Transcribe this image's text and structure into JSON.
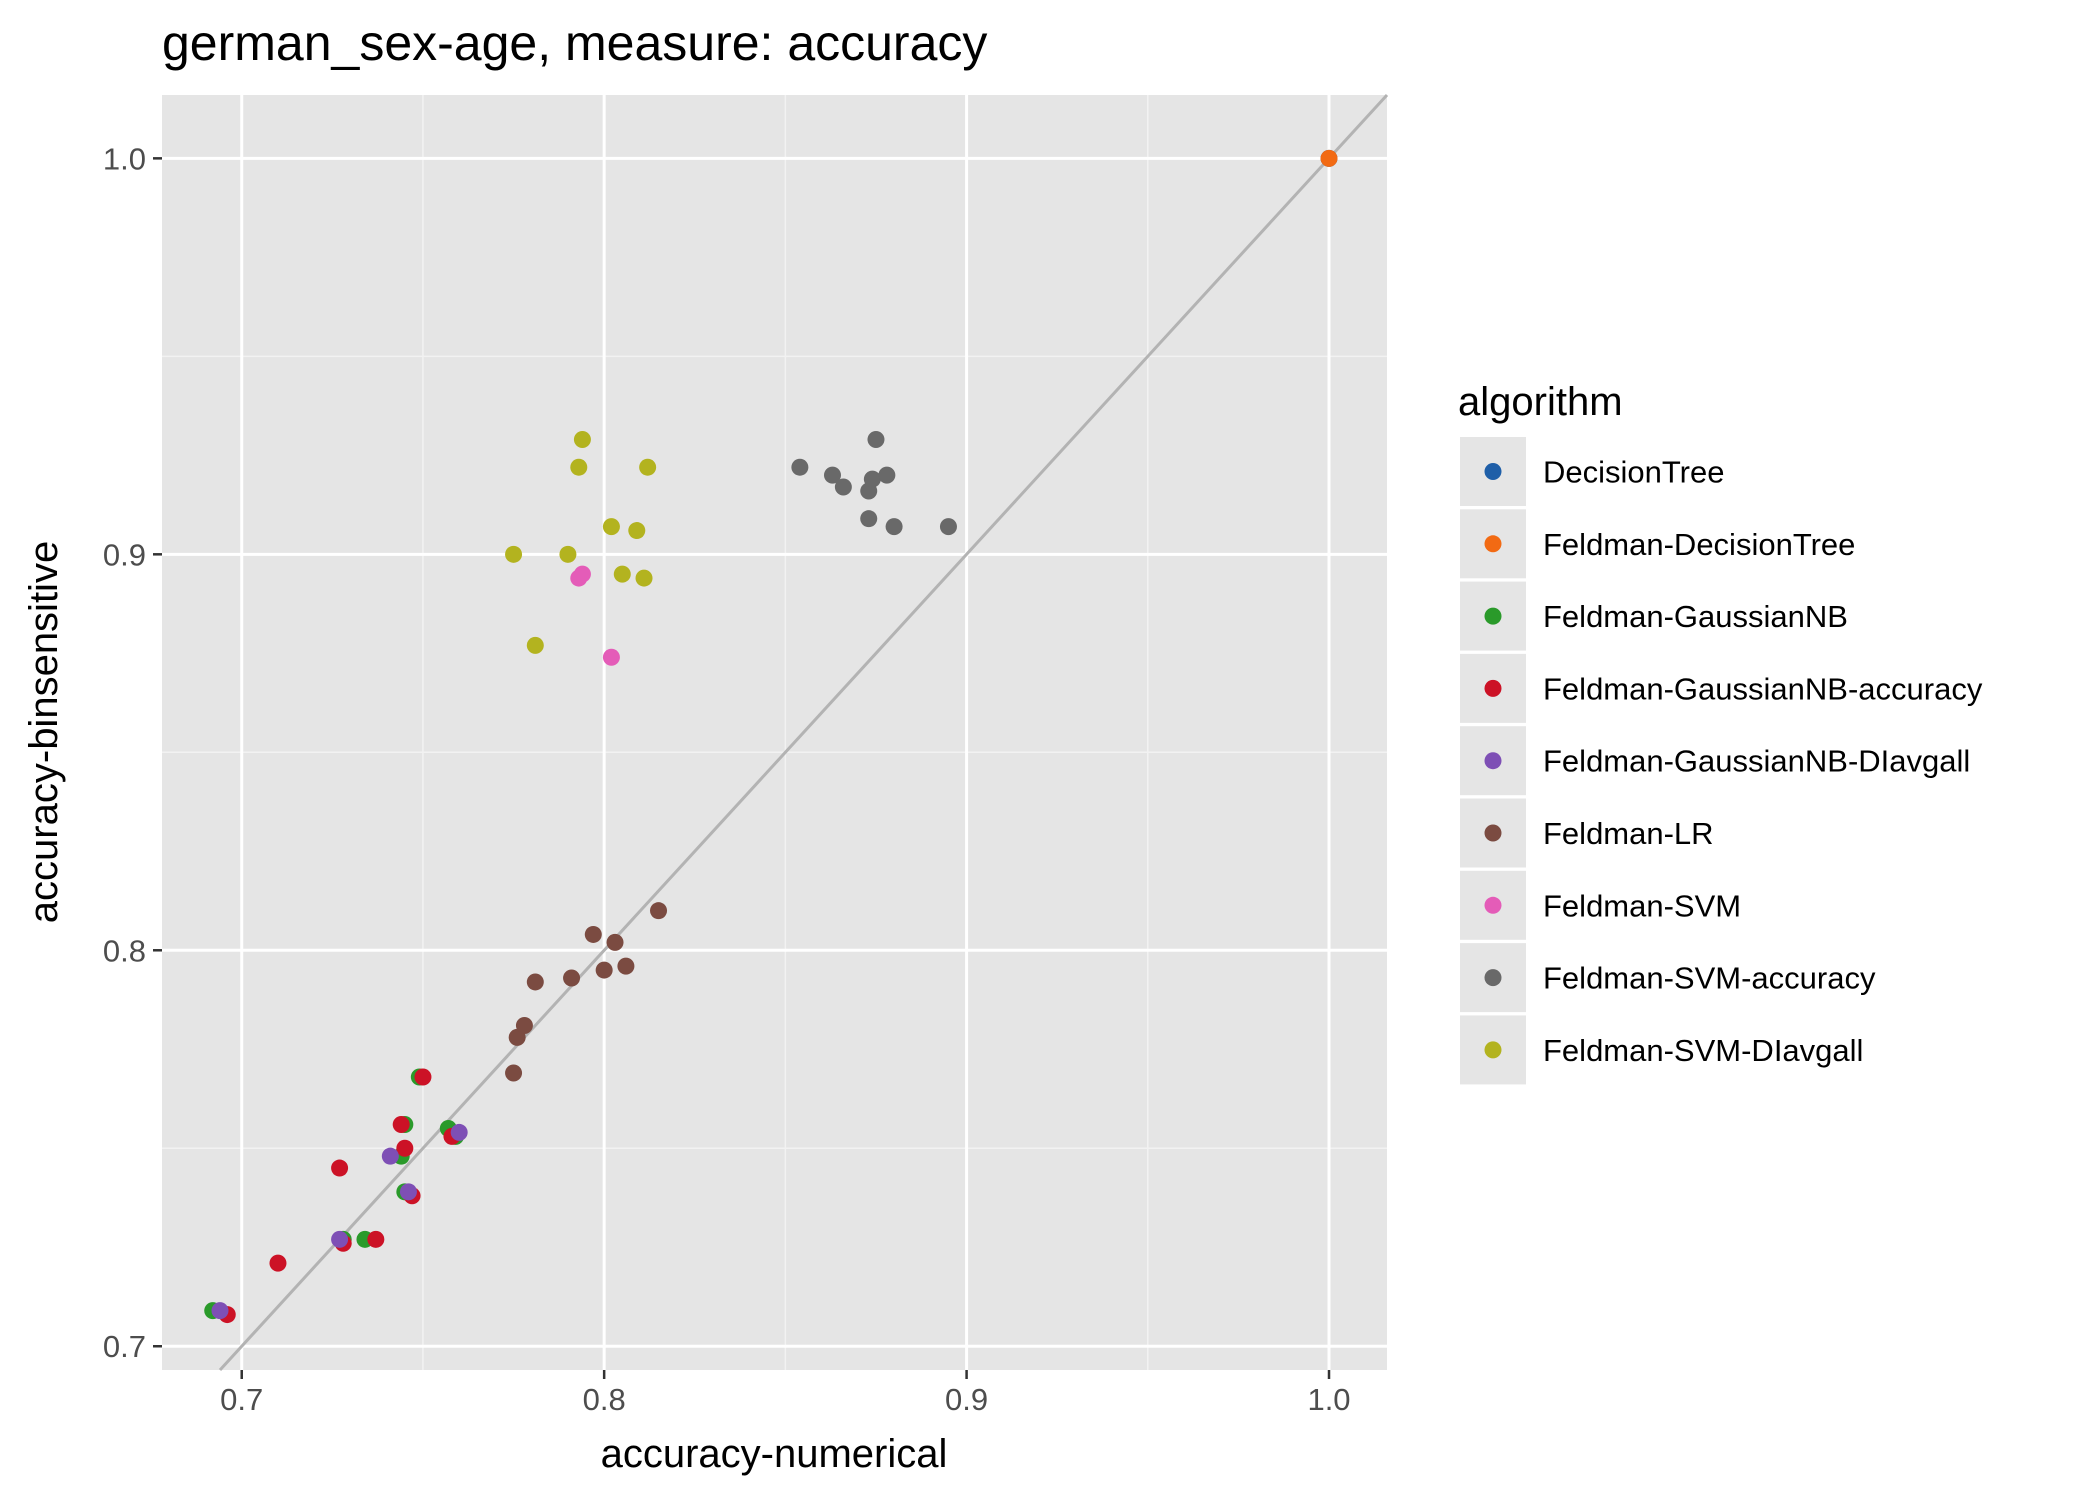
{
  "chart_data": {
    "type": "scatter",
    "title": "german_sex-age, measure: accuracy",
    "xlabel": "accuracy-numerical",
    "ylabel": "accuracy-binsensitive",
    "xlim": [
      0.678,
      1.016
    ],
    "ylim": [
      0.694,
      1.016
    ],
    "x_ticks": [
      "0.7",
      "0.8",
      "0.9",
      "1.0"
    ],
    "y_ticks": [
      "0.7",
      "0.8",
      "0.9",
      "1.0"
    ],
    "grid": true,
    "reference_line": "y = x",
    "legend": {
      "title": "algorithm",
      "placement": "right"
    },
    "series": [
      {
        "name": "DecisionTree",
        "color": "#1f5fa8",
        "points": [
          [
            1.0,
            1.0
          ]
        ]
      },
      {
        "name": "Feldman-DecisionTree",
        "color": "#f26a13",
        "points": [
          [
            1.0,
            1.0
          ]
        ]
      },
      {
        "name": "Feldman-GaussianNB",
        "color": "#2a9a2a",
        "points": [
          [
            0.692,
            0.709
          ],
          [
            0.728,
            0.727
          ],
          [
            0.734,
            0.727
          ],
          [
            0.744,
            0.748
          ],
          [
            0.745,
            0.739
          ],
          [
            0.745,
            0.756
          ],
          [
            0.749,
            0.768
          ],
          [
            0.757,
            0.755
          ],
          [
            0.759,
            0.753
          ]
        ]
      },
      {
        "name": "Feldman-GaussianNB-accuracy",
        "color": "#cc1226",
        "points": [
          [
            0.696,
            0.708
          ],
          [
            0.71,
            0.721
          ],
          [
            0.727,
            0.745
          ],
          [
            0.728,
            0.726
          ],
          [
            0.737,
            0.727
          ],
          [
            0.744,
            0.756
          ],
          [
            0.745,
            0.75
          ],
          [
            0.747,
            0.738
          ],
          [
            0.75,
            0.768
          ],
          [
            0.758,
            0.753
          ]
        ]
      },
      {
        "name": "Feldman-GaussianNB-DIavgall",
        "color": "#7e4fb5",
        "points": [
          [
            0.694,
            0.709
          ],
          [
            0.727,
            0.727
          ],
          [
            0.741,
            0.748
          ],
          [
            0.746,
            0.739
          ],
          [
            0.76,
            0.754
          ]
        ]
      },
      {
        "name": "Feldman-LR",
        "color": "#7b4b41",
        "points": [
          [
            0.775,
            0.769
          ],
          [
            0.776,
            0.778
          ],
          [
            0.778,
            0.781
          ],
          [
            0.781,
            0.792
          ],
          [
            0.791,
            0.793
          ],
          [
            0.797,
            0.804
          ],
          [
            0.8,
            0.795
          ],
          [
            0.803,
            0.802
          ],
          [
            0.806,
            0.796
          ],
          [
            0.815,
            0.81
          ]
        ]
      },
      {
        "name": "Feldman-SVM",
        "color": "#e45cb8",
        "points": [
          [
            0.793,
            0.894
          ],
          [
            0.794,
            0.895
          ],
          [
            0.802,
            0.874
          ]
        ]
      },
      {
        "name": "Feldman-SVM-accuracy",
        "color": "#696969",
        "points": [
          [
            0.854,
            0.922
          ],
          [
            0.863,
            0.92
          ],
          [
            0.866,
            0.917
          ],
          [
            0.873,
            0.909
          ],
          [
            0.873,
            0.916
          ],
          [
            0.874,
            0.919
          ],
          [
            0.875,
            0.929
          ],
          [
            0.878,
            0.92
          ],
          [
            0.88,
            0.907
          ],
          [
            0.895,
            0.907
          ]
        ]
      },
      {
        "name": "Feldman-SVM-DIavgall",
        "color": "#b3b31f",
        "points": [
          [
            0.775,
            0.9
          ],
          [
            0.781,
            0.877
          ],
          [
            0.79,
            0.9
          ],
          [
            0.793,
            0.922
          ],
          [
            0.794,
            0.929
          ],
          [
            0.802,
            0.907
          ],
          [
            0.805,
            0.895
          ],
          [
            0.809,
            0.906
          ],
          [
            0.811,
            0.894
          ],
          [
            0.812,
            0.922
          ]
        ]
      }
    ]
  }
}
